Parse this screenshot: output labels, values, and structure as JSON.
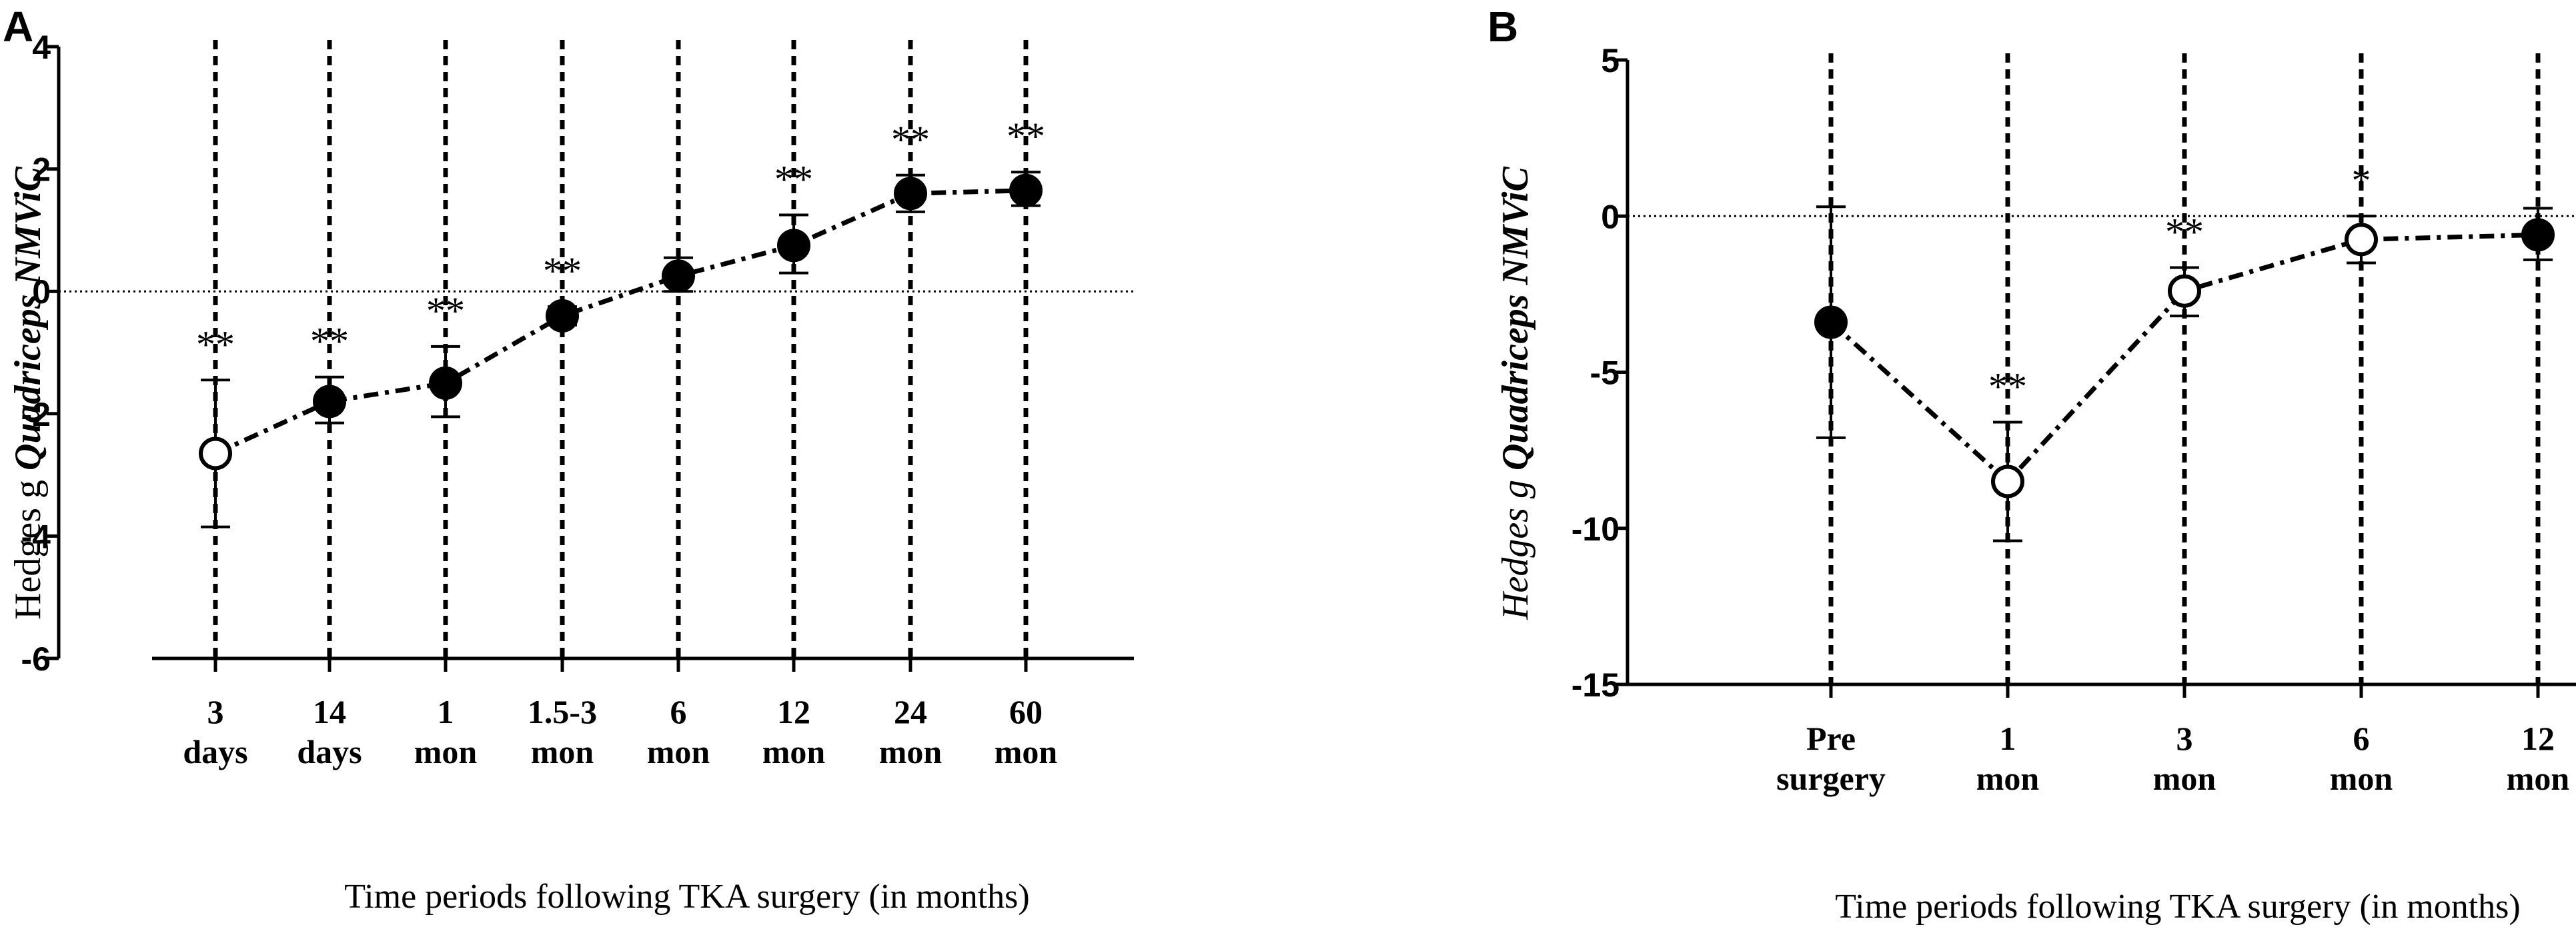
{
  "chart_data": [
    {
      "panel_label": "A",
      "type": "line",
      "title": "",
      "xlabel": "Time periods following TKA surgery (in months)",
      "ylabel_prefix": "Hedges g ",
      "ylabel_emph": "Quadriceps NMViC",
      "ylim": [
        -6,
        4
      ],
      "yticks": [
        4,
        2,
        0,
        -2,
        -4,
        -6
      ],
      "ytick_labels": [
        "4",
        "2",
        "0",
        "-2",
        "-4",
        "-6"
      ],
      "reference_line": 0,
      "categories": [
        [
          "3",
          "days"
        ],
        [
          "14",
          "days"
        ],
        [
          "1",
          "mon"
        ],
        [
          "1.5-3",
          "mon"
        ],
        [
          "6",
          "mon"
        ],
        [
          "12",
          "mon"
        ],
        [
          "24",
          "mon"
        ],
        [
          "60",
          "mon"
        ]
      ],
      "values": [
        -2.65,
        -1.8,
        -1.5,
        -0.4,
        0.25,
        0.75,
        1.6,
        1.65
      ],
      "err_low": [
        -3.85,
        -2.15,
        -2.05,
        -0.55,
        0.0,
        0.3,
        1.3,
        1.4
      ],
      "err_high": [
        -1.45,
        -1.4,
        -0.9,
        -0.25,
        0.55,
        1.25,
        1.9,
        1.95
      ],
      "marker_open": [
        true,
        false,
        false,
        false,
        false,
        false,
        false,
        false
      ],
      "annotations": [
        "**",
        "**",
        "**",
        "**",
        "",
        "**",
        "**",
        "**"
      ]
    },
    {
      "panel_label": "B",
      "type": "line",
      "title": "",
      "xlabel": "Time periods following TKA surgery (in months)",
      "ylabel_prefix": "Hedges g ",
      "ylabel_emph": "Quadriceps NMViC",
      "ylim": [
        -15,
        5
      ],
      "yticks": [
        5,
        0,
        -5,
        -10,
        -15
      ],
      "ytick_labels": [
        "5",
        "0",
        "-5",
        "-10",
        "-15"
      ],
      "reference_line": 0,
      "categories": [
        [
          "Pre",
          "surgery"
        ],
        [
          "1",
          "mon"
        ],
        [
          "3",
          "mon"
        ],
        [
          "6",
          "mon"
        ],
        [
          "12",
          "mon"
        ]
      ],
      "values": [
        -3.4,
        -8.5,
        -2.4,
        -0.75,
        -0.6
      ],
      "err_low": [
        -7.1,
        -10.4,
        -3.2,
        -1.5,
        -1.4
      ],
      "err_high": [
        0.3,
        -6.6,
        -1.65,
        0.0,
        0.25
      ],
      "marker_open": [
        false,
        true,
        true,
        true,
        false
      ],
      "annotations": [
        "",
        "**",
        "**",
        "*",
        ""
      ]
    }
  ]
}
